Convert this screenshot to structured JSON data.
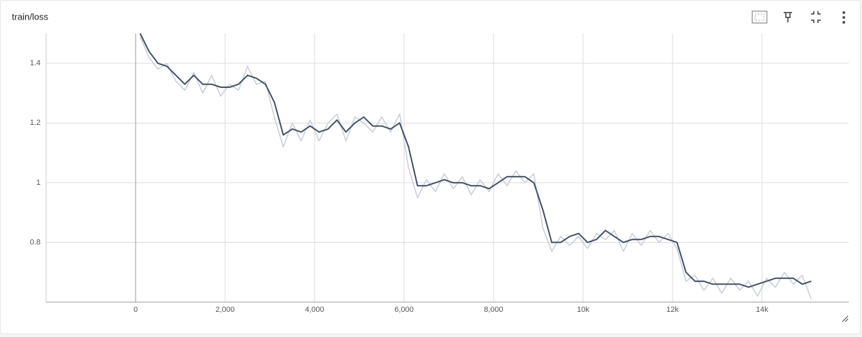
{
  "chart_data": {
    "type": "line",
    "title": "train/loss",
    "x": [
      100,
      300,
      500,
      700,
      900,
      1100,
      1300,
      1500,
      1700,
      1900,
      2100,
      2300,
      2500,
      2700,
      2900,
      3100,
      3300,
      3500,
      3700,
      3900,
      4100,
      4300,
      4500,
      4700,
      4900,
      5100,
      5300,
      5500,
      5700,
      5900,
      6100,
      6300,
      6500,
      6700,
      6900,
      7100,
      7300,
      7500,
      7700,
      7900,
      8100,
      8300,
      8500,
      8700,
      8900,
      9100,
      9300,
      9500,
      9700,
      9900,
      10100,
      10300,
      10500,
      10700,
      10900,
      11100,
      11300,
      11500,
      11700,
      11900,
      12100,
      12300,
      12500,
      12700,
      12900,
      13100,
      13300,
      13500,
      13700,
      13900,
      14100,
      14300,
      14500,
      14700,
      14900,
      15100
    ],
    "series": [
      {
        "color": "#c6ccd9",
        "values": [
          1.49,
          1.42,
          1.38,
          1.4,
          1.34,
          1.31,
          1.37,
          1.3,
          1.36,
          1.29,
          1.33,
          1.31,
          1.39,
          1.33,
          1.34,
          1.22,
          1.12,
          1.2,
          1.14,
          1.21,
          1.14,
          1.2,
          1.23,
          1.14,
          1.22,
          1.2,
          1.17,
          1.22,
          1.17,
          1.23,
          1.05,
          0.95,
          1.01,
          0.97,
          1.03,
          0.98,
          1.02,
          0.96,
          1.01,
          0.97,
          1.03,
          0.99,
          1.04,
          1.0,
          1.03,
          0.85,
          0.77,
          0.82,
          0.79,
          0.82,
          0.78,
          0.83,
          0.81,
          0.84,
          0.77,
          0.83,
          0.79,
          0.84,
          0.8,
          0.83,
          0.78,
          0.67,
          0.69,
          0.64,
          0.68,
          0.63,
          0.68,
          0.64,
          0.67,
          0.62,
          0.68,
          0.65,
          0.7,
          0.66,
          0.69,
          0.61
        ]
      },
      {
        "color": "#425066",
        "values": [
          1.5,
          1.44,
          1.4,
          1.39,
          1.36,
          1.33,
          1.36,
          1.33,
          1.33,
          1.32,
          1.32,
          1.33,
          1.36,
          1.35,
          1.33,
          1.27,
          1.16,
          1.18,
          1.17,
          1.19,
          1.17,
          1.18,
          1.21,
          1.17,
          1.2,
          1.22,
          1.19,
          1.19,
          1.18,
          1.2,
          1.12,
          0.99,
          0.99,
          1.0,
          1.01,
          1.0,
          1.0,
          0.99,
          0.99,
          0.98,
          1.0,
          1.02,
          1.02,
          1.02,
          1.0,
          0.91,
          0.8,
          0.8,
          0.82,
          0.83,
          0.8,
          0.81,
          0.84,
          0.82,
          0.8,
          0.81,
          0.81,
          0.82,
          0.82,
          0.81,
          0.8,
          0.7,
          0.67,
          0.67,
          0.66,
          0.66,
          0.66,
          0.66,
          0.65,
          0.66,
          0.67,
          0.68,
          0.68,
          0.68,
          0.66,
          0.67
        ]
      }
    ],
    "xlim": [
      -2000,
      15937.5
    ],
    "xticks": [
      0,
      {
        "value": 2000,
        "label": "2,000"
      },
      {
        "value": 4000,
        "label": "4,000"
      },
      {
        "value": 6000,
        "label": "6,000"
      },
      {
        "value": 8000,
        "label": "8,000"
      },
      {
        "value": 10000,
        "label": "10k"
      },
      {
        "value": 12000,
        "label": "12k"
      },
      {
        "value": 14000,
        "label": "14k"
      }
    ],
    "ylim": [
      0.6,
      1.5
    ],
    "yticks": [
      0.8,
      1,
      1.2,
      1.4
    ],
    "grid": true
  }
}
